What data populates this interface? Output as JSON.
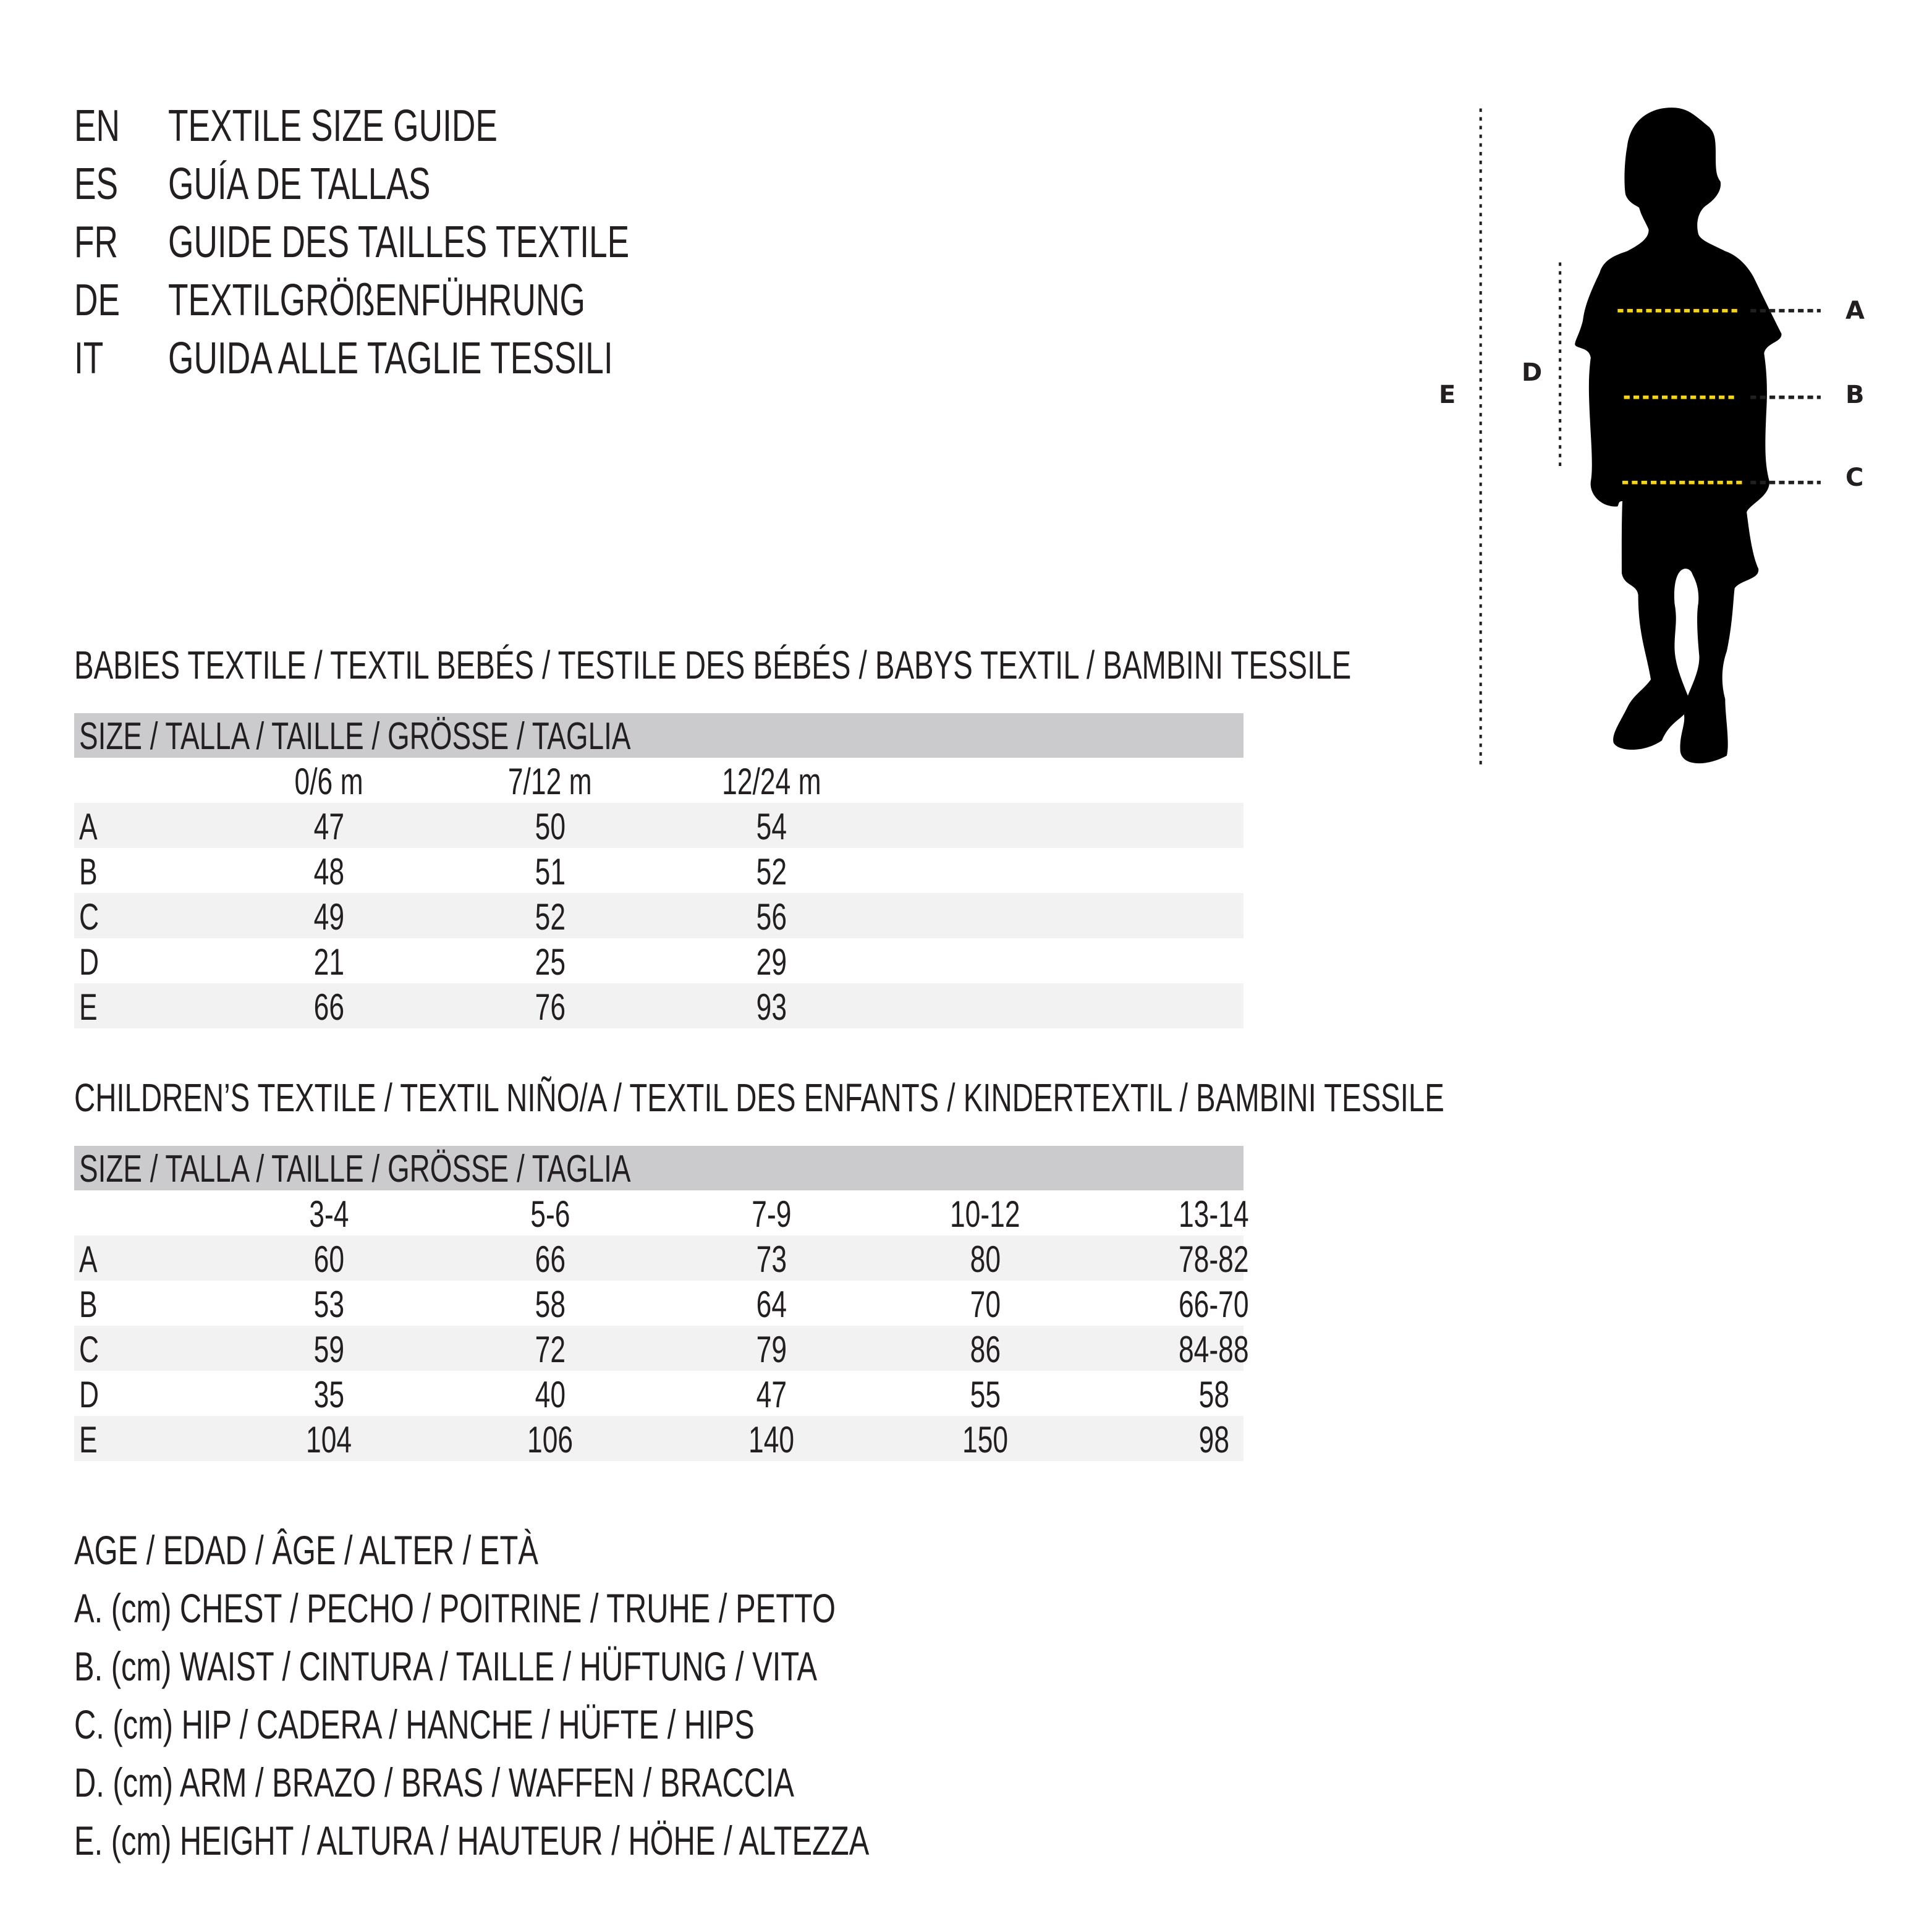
{
  "titles": [
    {
      "code": "EN",
      "text": "TEXTILE SIZE GUIDE"
    },
    {
      "code": "ES",
      "text": "GUÍA DE TALLAS"
    },
    {
      "code": "FR",
      "text": "GUIDE DES TAILLES TEXTILE"
    },
    {
      "code": "DE",
      "text": "TEXTILGRÖßENFÜHRUNG"
    },
    {
      "code": "IT",
      "text": "GUIDA ALLE TAGLIE TESSILI"
    }
  ],
  "figure": {
    "labels": {
      "A": "A",
      "B": "B",
      "C": "C",
      "D": "D",
      "E": "E"
    },
    "colors": {
      "silhouette": "#000000",
      "guide_yellow": "#f5d41f",
      "guide_dark": "#231f20"
    }
  },
  "babies": {
    "heading": "BABIES TEXTILE / TEXTIL BEBÉS / TESTILE DES BÉBÉS / BABYS TEXTIL / BAMBINI TESSILE",
    "size_header": "SIZE / TALLA / TAILLE / GRÖSSE / TAGLIA",
    "columns": [
      "0/6 m",
      "7/12 m",
      "12/24 m"
    ],
    "rows": [
      {
        "label": "A",
        "values": [
          "47",
          "50",
          "54"
        ]
      },
      {
        "label": "B",
        "values": [
          "48",
          "51",
          "52"
        ]
      },
      {
        "label": "C",
        "values": [
          "49",
          "52",
          "56"
        ]
      },
      {
        "label": "D",
        "values": [
          "21",
          "25",
          "29"
        ]
      },
      {
        "label": "E",
        "values": [
          "66",
          "76",
          "93"
        ]
      }
    ]
  },
  "children": {
    "heading": "CHILDREN’S TEXTILE / TEXTIL NIÑO/A / TEXTIL DES ENFANTS / KINDERTEXTIL / BAMBINI TESSILE",
    "size_header": "SIZE / TALLA / TAILLE / GRÖSSE / TAGLIA",
    "columns": [
      "3-4",
      "5-6",
      "7-9",
      "10-12",
      "13-14"
    ],
    "rows": [
      {
        "label": "A",
        "values": [
          "60",
          "66",
          "73",
          "80",
          "78-82"
        ]
      },
      {
        "label": "B",
        "values": [
          "53",
          "58",
          "64",
          "70",
          "66-70"
        ]
      },
      {
        "label": "C",
        "values": [
          "59",
          "72",
          "79",
          "86",
          "84-88"
        ]
      },
      {
        "label": "D",
        "values": [
          "35",
          "40",
          "47",
          "55",
          "58"
        ]
      },
      {
        "label": "E",
        "values": [
          "104",
          "106",
          "140",
          "150",
          "98"
        ]
      }
    ]
  },
  "legend": [
    "AGE / EDAD / ÂGE / ALTER / ETÀ",
    "A. (cm) CHEST / PECHO / POITRINE / TRUHE / PETTO",
    "B. (cm) WAIST / CINTURA / TAILLE / HÜFTUNG / VITA",
    "C. (cm) HIP / CADERA / HANCHE / HÜFTE / HIPS",
    "D. (cm) ARM / BRAZO / BRAS / WAFFEN / BRACCIA",
    "E. (cm) HEIGHT / ALTURA / HAUTEUR / HÖHE / ALTEZZA"
  ]
}
